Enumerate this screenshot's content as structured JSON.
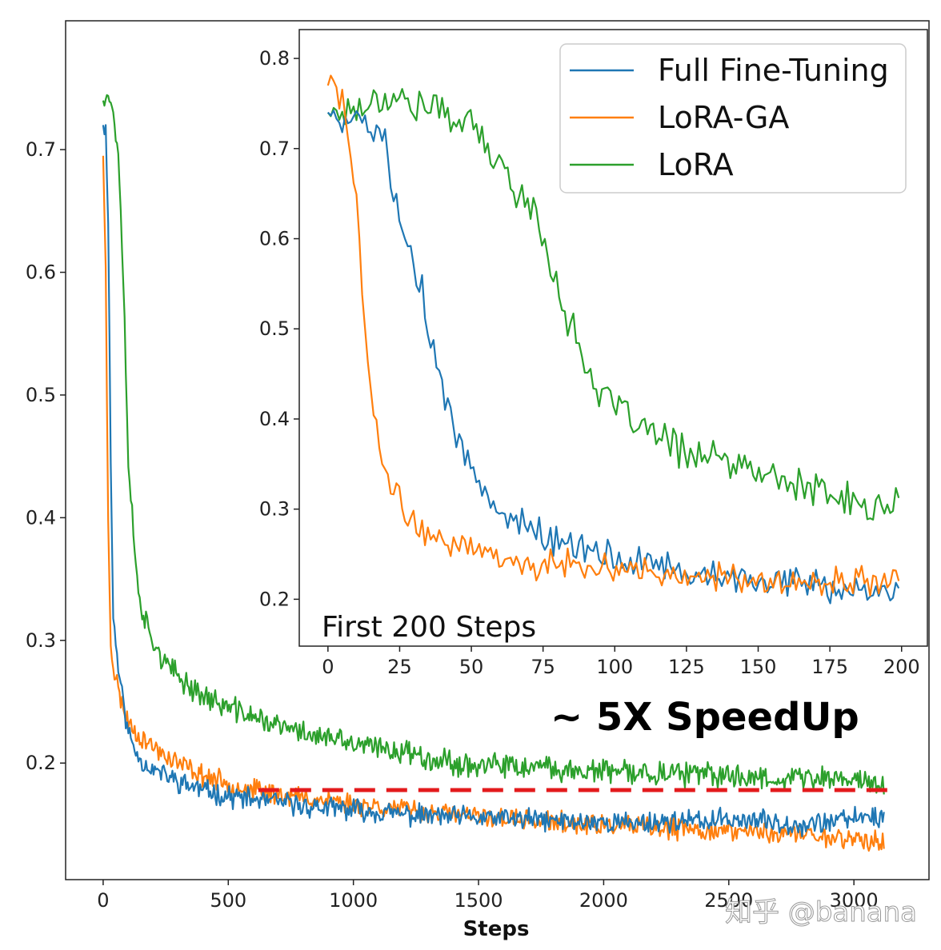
{
  "colors": {
    "full_ft": "#1f77b4",
    "lora_ga": "#ff7f0e",
    "lora": "#2ca02c",
    "threshold": "#e31a1c"
  },
  "annotation": "~ 5X SpeedUp",
  "watermark": "知乎 @banana",
  "chart_data": [
    {
      "id": "main",
      "type": "line",
      "title": "",
      "xlabel": "Steps",
      "ylabel": "",
      "xlim": [
        -150,
        3300
      ],
      "ylim": [
        0.105,
        0.805
      ],
      "xticks": [
        0,
        500,
        1000,
        1500,
        2000,
        2500,
        3000
      ],
      "xtick_labels": [
        "0",
        "500",
        "1000",
        "1500",
        "2000",
        "2500",
        "3000"
      ],
      "yticks": [
        0.2,
        0.3,
        0.4,
        0.5,
        0.6,
        0.7
      ],
      "ytick_labels": [
        "0.2",
        "0.3",
        "0.4",
        "0.5",
        "0.6",
        "0.7"
      ],
      "reference_line": {
        "y": 0.178,
        "x_start": 620,
        "x_end": 3170,
        "style": "dashed"
      },
      "series": [
        {
          "name": "Full Fine-Tuning",
          "x": [
            0,
            10,
            20,
            30,
            40,
            60,
            80,
            100,
            130,
            160,
            200,
            300,
            400,
            500,
            600,
            700,
            800,
            900,
            1000,
            1100,
            1200,
            1300,
            1400,
            1500,
            1600,
            1700,
            1800,
            1900,
            2000,
            2100,
            2200,
            2300,
            2400,
            2500,
            2600,
            2700,
            2800,
            2900,
            3000,
            3050,
            3100,
            3120
          ],
          "y": [
            0.72,
            0.715,
            0.65,
            0.45,
            0.32,
            0.28,
            0.25,
            0.225,
            0.21,
            0.2,
            0.195,
            0.185,
            0.178,
            0.173,
            0.17,
            0.168,
            0.165,
            0.163,
            0.162,
            0.16,
            0.158,
            0.157,
            0.156,
            0.155,
            0.155,
            0.154,
            0.153,
            0.152,
            0.152,
            0.151,
            0.152,
            0.153,
            0.152,
            0.155,
            0.153,
            0.152,
            0.15,
            0.152,
            0.155,
            0.158,
            0.155,
            0.158
          ],
          "noise": 0.007,
          "seed": 11
        },
        {
          "name": "LoRA-GA",
          "x": [
            0,
            10,
            20,
            30,
            40,
            60,
            80,
            100,
            130,
            160,
            200,
            300,
            400,
            500,
            600,
            700,
            800,
            900,
            1000,
            1100,
            1200,
            1300,
            1400,
            1500,
            1600,
            1700,
            1800,
            1900,
            2000,
            2100,
            2200,
            2300,
            2400,
            2500,
            2600,
            2700,
            2800,
            2900,
            3000,
            3050,
            3100,
            3120
          ],
          "y": [
            0.695,
            0.6,
            0.4,
            0.3,
            0.28,
            0.26,
            0.245,
            0.235,
            0.225,
            0.22,
            0.213,
            0.2,
            0.19,
            0.183,
            0.178,
            0.175,
            0.172,
            0.17,
            0.167,
            0.165,
            0.162,
            0.16,
            0.158,
            0.156,
            0.155,
            0.153,
            0.152,
            0.15,
            0.149,
            0.148,
            0.147,
            0.146,
            0.145,
            0.145,
            0.144,
            0.143,
            0.142,
            0.14,
            0.138,
            0.137,
            0.135,
            0.136
          ],
          "noise": 0.007,
          "seed": 23
        },
        {
          "name": "LoRA",
          "x": [
            0,
            10,
            20,
            40,
            60,
            80,
            100,
            130,
            160,
            200,
            250,
            300,
            400,
            500,
            600,
            700,
            800,
            900,
            1000,
            1100,
            1200,
            1300,
            1400,
            1500,
            1600,
            1700,
            1800,
            1900,
            2000,
            2100,
            2200,
            2300,
            2400,
            2500,
            2600,
            2700,
            2800,
            2900,
            3000,
            3050,
            3100,
            3120
          ],
          "y": [
            0.74,
            0.75,
            0.745,
            0.73,
            0.7,
            0.6,
            0.45,
            0.36,
            0.32,
            0.3,
            0.28,
            0.27,
            0.255,
            0.245,
            0.238,
            0.23,
            0.225,
            0.22,
            0.215,
            0.212,
            0.21,
            0.205,
            0.2,
            0.198,
            0.197,
            0.196,
            0.195,
            0.194,
            0.193,
            0.192,
            0.192,
            0.191,
            0.19,
            0.19,
            0.189,
            0.188,
            0.188,
            0.187,
            0.188,
            0.185,
            0.183,
            0.18
          ],
          "noise": 0.008,
          "seed": 37
        }
      ]
    },
    {
      "id": "inset",
      "type": "line",
      "title": "First 200 Steps",
      "xlabel": "",
      "ylabel": "",
      "xlim": [
        -10,
        209
      ],
      "ylim": [
        0.148,
        0.832
      ],
      "xticks": [
        0,
        25,
        50,
        75,
        100,
        125,
        150,
        175,
        200
      ],
      "xtick_labels": [
        "0",
        "25",
        "50",
        "75",
        "100",
        "125",
        "150",
        "175",
        "200"
      ],
      "yticks": [
        0.2,
        0.3,
        0.4,
        0.5,
        0.6,
        0.7,
        0.8
      ],
      "ytick_labels": [
        "0.2",
        "0.3",
        "0.4",
        "0.5",
        "0.6",
        "0.7",
        "0.8"
      ],
      "legend": {
        "location": "top-right",
        "entries": [
          "Full Fine-Tuning",
          "LoRA-GA",
          "LoRA"
        ]
      },
      "series": [
        {
          "name": "Full Fine-Tuning",
          "x": [
            0,
            5,
            10,
            15,
            20,
            22,
            25,
            28,
            30,
            33,
            35,
            38,
            40,
            43,
            45,
            50,
            55,
            60,
            65,
            70,
            80,
            90,
            100,
            110,
            120,
            130,
            140,
            150,
            160,
            170,
            180,
            190,
            199
          ],
          "y": [
            0.74,
            0.735,
            0.73,
            0.72,
            0.71,
            0.67,
            0.63,
            0.6,
            0.57,
            0.54,
            0.5,
            0.46,
            0.43,
            0.4,
            0.38,
            0.35,
            0.32,
            0.3,
            0.29,
            0.28,
            0.265,
            0.255,
            0.245,
            0.24,
            0.235,
            0.23,
            0.225,
            0.22,
            0.215,
            0.215,
            0.21,
            0.21,
            0.215
          ],
          "noise": 0.014,
          "seed": 5
        },
        {
          "name": "LoRA-GA",
          "x": [
            0,
            2,
            4,
            6,
            8,
            10,
            12,
            14,
            16,
            18,
            20,
            22,
            25,
            28,
            30,
            35,
            40,
            50,
            60,
            70,
            80,
            90,
            100,
            110,
            120,
            130,
            140,
            150,
            160,
            170,
            180,
            190,
            199
          ],
          "y": [
            0.77,
            0.78,
            0.76,
            0.74,
            0.7,
            0.64,
            0.55,
            0.45,
            0.41,
            0.37,
            0.34,
            0.32,
            0.31,
            0.29,
            0.28,
            0.27,
            0.265,
            0.26,
            0.245,
            0.24,
            0.24,
            0.24,
            0.235,
            0.23,
            0.225,
            0.225,
            0.225,
            0.22,
            0.22,
            0.22,
            0.22,
            0.22,
            0.22
          ],
          "noise": 0.013,
          "seed": 9
        },
        {
          "name": "LoRA",
          "x": [
            0,
            10,
            20,
            30,
            40,
            50,
            55,
            60,
            65,
            70,
            75,
            80,
            85,
            90,
            95,
            100,
            110,
            120,
            130,
            140,
            150,
            160,
            170,
            180,
            190,
            199
          ],
          "y": [
            0.74,
            0.745,
            0.76,
            0.75,
            0.74,
            0.73,
            0.7,
            0.68,
            0.66,
            0.64,
            0.6,
            0.55,
            0.5,
            0.46,
            0.43,
            0.41,
            0.39,
            0.37,
            0.36,
            0.35,
            0.34,
            0.33,
            0.32,
            0.31,
            0.3,
            0.305
          ],
          "noise": 0.016,
          "seed": 17
        }
      ]
    }
  ]
}
